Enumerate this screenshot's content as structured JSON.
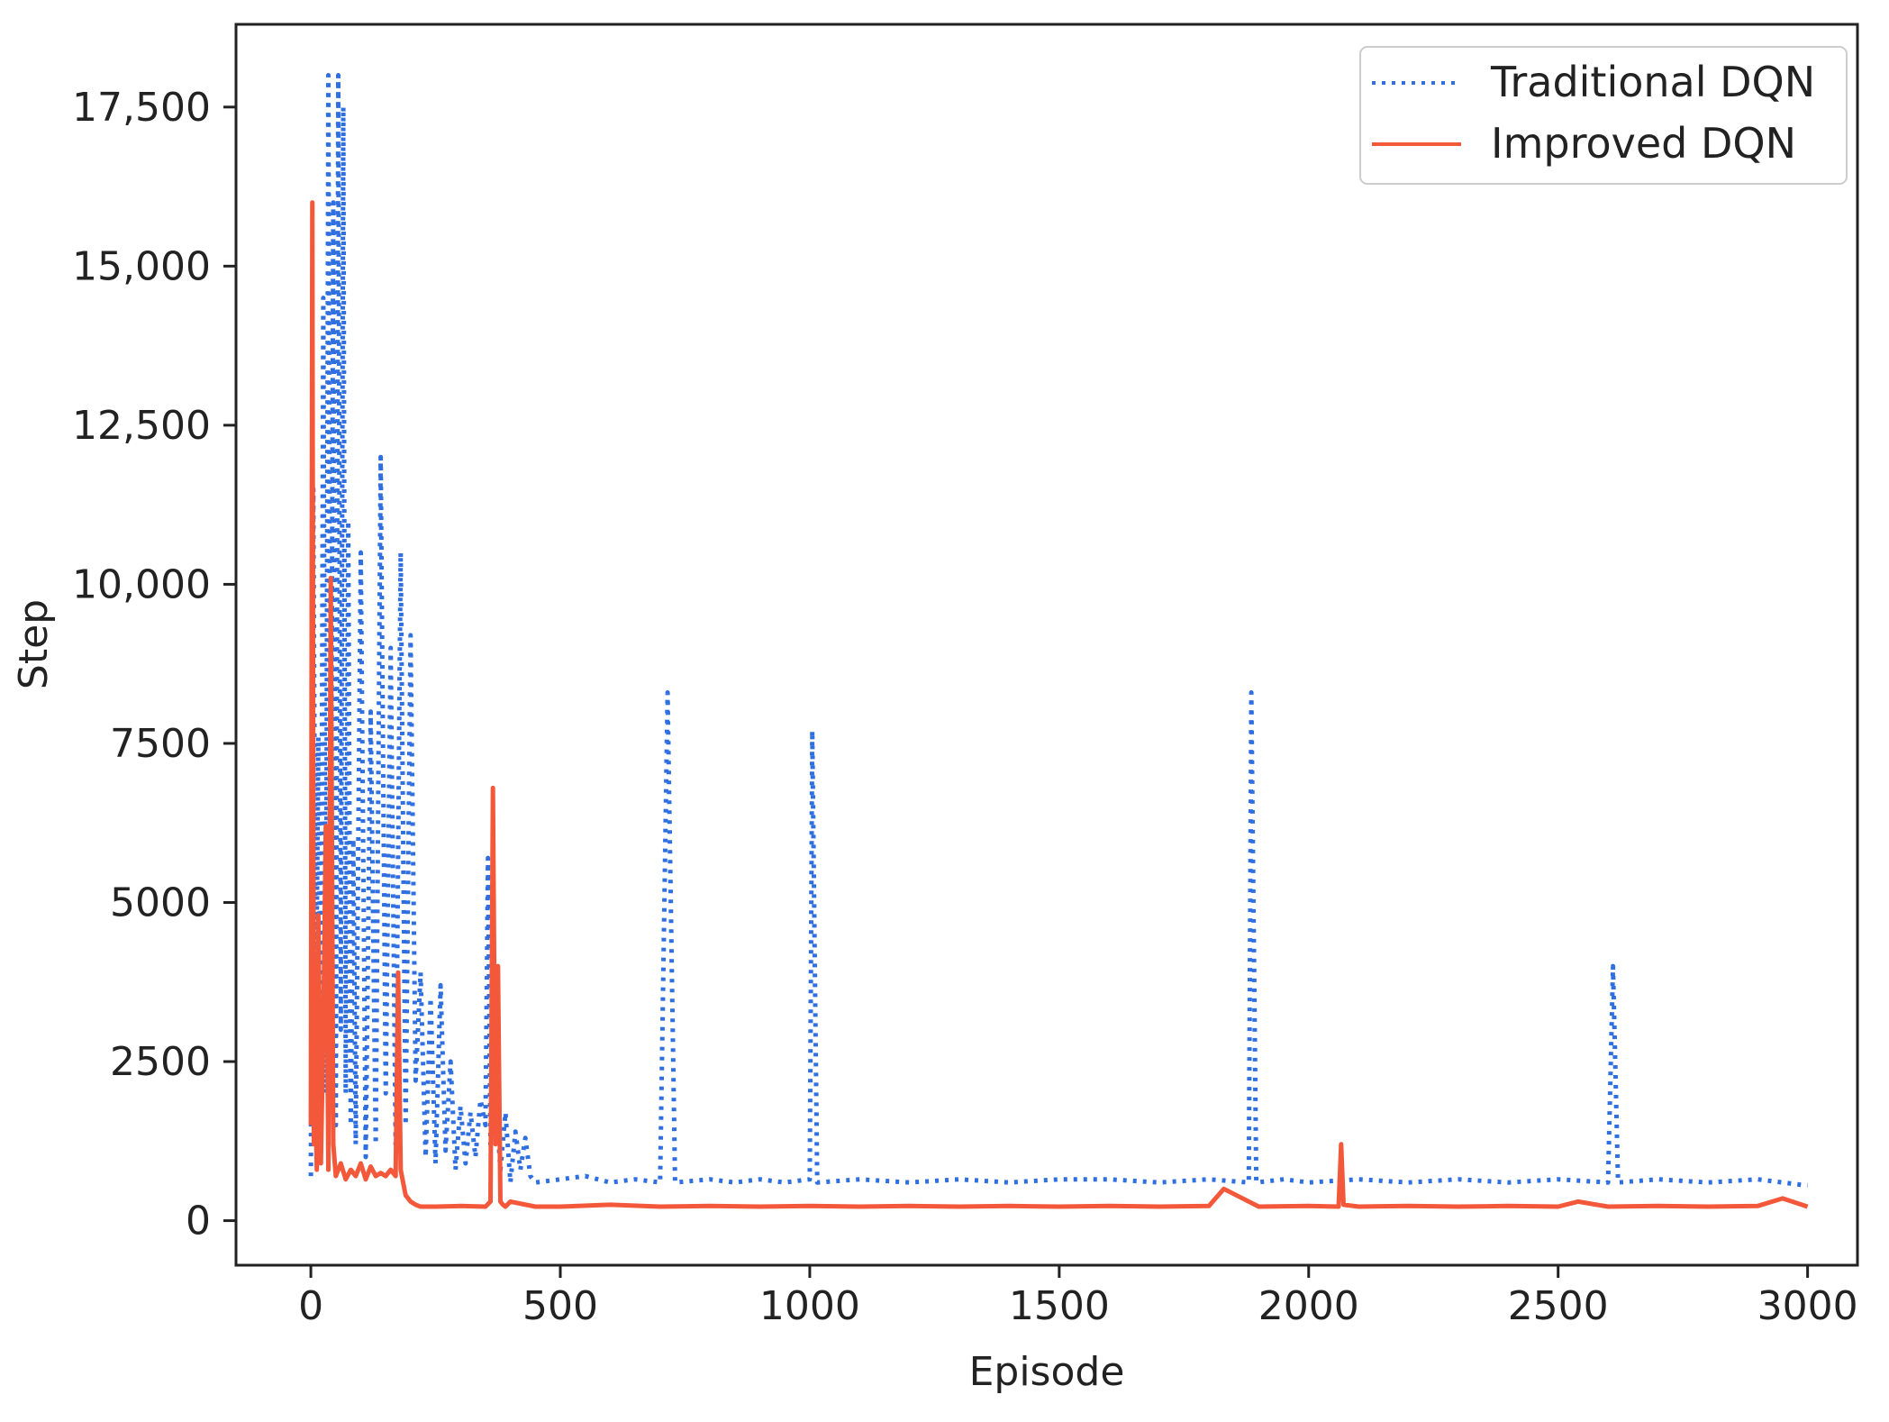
{
  "chart_data": {
    "type": "line",
    "title": "",
    "xlabel": "Episode",
    "ylabel": "Step",
    "xlim": [
      -150,
      3100
    ],
    "ylim": [
      -700,
      18800
    ],
    "x_ticks": [
      0,
      500,
      1000,
      1500,
      2000,
      2500,
      3000
    ],
    "x_tick_labels": [
      "0",
      "500",
      "1000",
      "1500",
      "2000",
      "2500",
      "3000"
    ],
    "y_ticks": [
      0,
      2500,
      5000,
      7500,
      10000,
      12500,
      15000,
      17500
    ],
    "y_tick_labels": [
      "0",
      "2500",
      "5000",
      "7500",
      "10,000",
      "12,500",
      "15,000",
      "17,500"
    ],
    "grid": false,
    "legend_position": "top-right",
    "series": [
      {
        "name": "Traditional DQN",
        "color": "#2f6fe0",
        "style": "dotted",
        "x": [
          0,
          5,
          10,
          15,
          20,
          25,
          30,
          35,
          40,
          45,
          50,
          55,
          60,
          65,
          70,
          75,
          80,
          85,
          90,
          100,
          110,
          120,
          130,
          140,
          150,
          160,
          170,
          180,
          190,
          200,
          210,
          220,
          230,
          240,
          250,
          260,
          270,
          280,
          290,
          300,
          310,
          320,
          330,
          340,
          350,
          355,
          360,
          370,
          380,
          390,
          400,
          410,
          420,
          430,
          440,
          450,
          500,
          550,
          600,
          650,
          700,
          715,
          730,
          800,
          850,
          900,
          950,
          1000,
          1005,
          1015,
          1100,
          1200,
          1300,
          1400,
          1500,
          1600,
          1700,
          1800,
          1880,
          1885,
          1895,
          1950,
          2000,
          2100,
          2200,
          2300,
          2400,
          2500,
          2600,
          2610,
          2620,
          2700,
          2800,
          2900,
          2950,
          3000
        ],
        "y": [
          700,
          11500,
          3000,
          7600,
          1800,
          14500,
          2000,
          18000,
          4000,
          16000,
          1500,
          18000,
          3000,
          17500,
          2000,
          11000,
          1500,
          6000,
          1200,
          10500,
          1000,
          8000,
          1200,
          12000,
          2000,
          9000,
          1200,
          10500,
          1500,
          9200,
          2200,
          3900,
          1000,
          3500,
          900,
          3700,
          1100,
          2500,
          800,
          1800,
          900,
          1700,
          1000,
          1900,
          1500,
          5700,
          1200,
          2000,
          800,
          1700,
          600,
          1400,
          800,
          1300,
          700,
          600,
          650,
          700,
          600,
          650,
          600,
          8300,
          600,
          650,
          600,
          650,
          600,
          650,
          7700,
          600,
          650,
          600,
          650,
          600,
          650,
          650,
          600,
          650,
          600,
          8300,
          600,
          650,
          600,
          650,
          600,
          650,
          600,
          650,
          600,
          4000,
          600,
          650,
          600,
          650,
          600,
          550
        ]
      },
      {
        "name": "Improved DQN",
        "color": "#f4583a",
        "style": "solid",
        "x": [
          0,
          3,
          6,
          9,
          12,
          15,
          20,
          25,
          30,
          35,
          40,
          45,
          50,
          60,
          70,
          80,
          90,
          100,
          110,
          120,
          130,
          140,
          150,
          160,
          170,
          175,
          180,
          185,
          190,
          200,
          210,
          220,
          250,
          300,
          350,
          360,
          365,
          370,
          375,
          380,
          385,
          390,
          400,
          450,
          500,
          600,
          700,
          800,
          900,
          1000,
          1100,
          1200,
          1300,
          1400,
          1500,
          1600,
          1700,
          1800,
          1830,
          1900,
          2000,
          2060,
          2065,
          2070,
          2100,
          2200,
          2300,
          2400,
          2500,
          2540,
          2600,
          2700,
          2800,
          2900,
          2950,
          3000
        ],
        "y": [
          1500,
          16000,
          1200,
          2000,
          800,
          4800,
          900,
          3000,
          6200,
          800,
          10100,
          1200,
          700,
          900,
          650,
          800,
          700,
          900,
          650,
          850,
          700,
          750,
          700,
          800,
          700,
          3900,
          800,
          600,
          400,
          300,
          250,
          220,
          220,
          230,
          220,
          300,
          6800,
          1200,
          4000,
          300,
          250,
          220,
          300,
          220,
          220,
          250,
          220,
          230,
          220,
          230,
          220,
          230,
          220,
          230,
          220,
          230,
          220,
          230,
          500,
          220,
          230,
          220,
          1200,
          250,
          220,
          230,
          220,
          230,
          220,
          300,
          220,
          230,
          220,
          230,
          350,
          220
        ]
      }
    ]
  }
}
